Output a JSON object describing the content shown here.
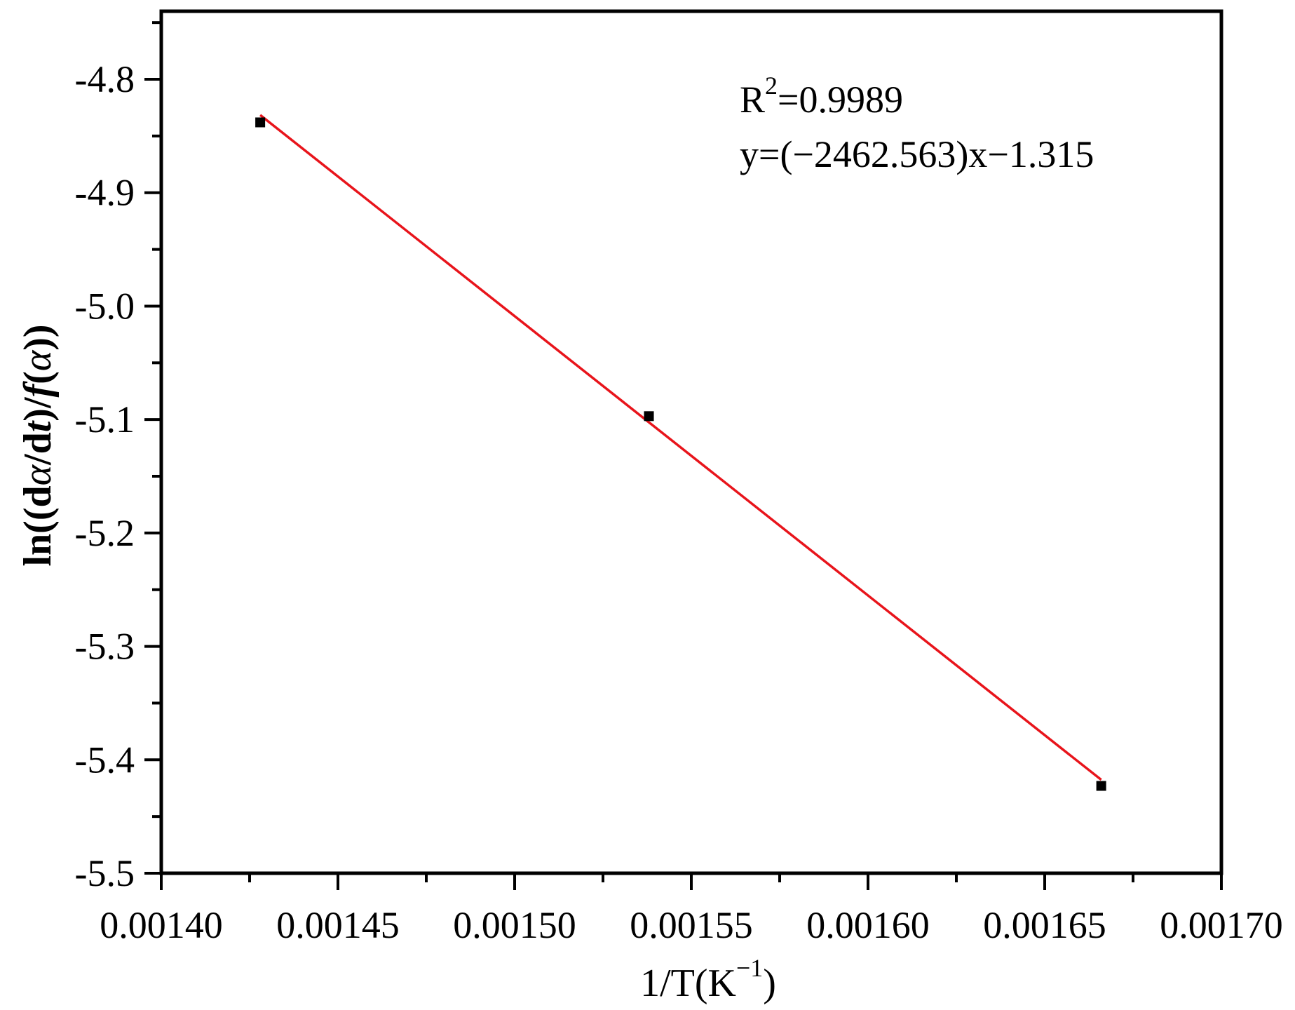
{
  "chart_data": {
    "type": "scatter",
    "xlabel": "1/T(K",
    "xlabel_sup": "−1",
    "xlabel_close": ")",
    "ylabel": {
      "prefix": "ln((d",
      "alpha1": "α",
      "mid": "/d",
      "t": "t",
      "mid2": ")/",
      "f": "f",
      "open": "(",
      "alpha2": "α",
      "close": "))"
    },
    "xlim": [
      0.0014,
      0.0017
    ],
    "ylim": [
      -5.5,
      -4.74
    ],
    "x_ticks": [
      0.0014,
      0.00145,
      0.0015,
      0.00155,
      0.0016,
      0.00165,
      0.0017
    ],
    "x_tick_labels": [
      "0.00140",
      "0.00145",
      "0.00150",
      "0.00155",
      "0.00160",
      "0.00165",
      "0.00170"
    ],
    "y_ticks": [
      -4.8,
      -4.9,
      -5.0,
      -5.1,
      -5.2,
      -5.3,
      -5.4,
      -5.5
    ],
    "y_tick_labels": [
      "-4.8",
      "-4.9",
      "-5.0",
      "-5.1",
      "-5.2",
      "-5.3",
      "-5.4",
      "-5.5"
    ],
    "points": [
      {
        "x": 0.001428,
        "y": -4.838
      },
      {
        "x": 0.001538,
        "y": -5.097
      },
      {
        "x": 0.001666,
        "y": -5.423
      }
    ],
    "fit_line": {
      "slope": -2462.563,
      "intercept": -1.315,
      "x_range": [
        0.001428,
        0.001666
      ],
      "color": "#e8141b"
    },
    "marker_color": "#000000",
    "annotations": {
      "r2_prefix": "R",
      "r2_sup": "2",
      "r2_value": "=0.9989",
      "equation": "y=(−2462.563)x−1.315"
    },
    "grid": false,
    "legend": "none"
  }
}
